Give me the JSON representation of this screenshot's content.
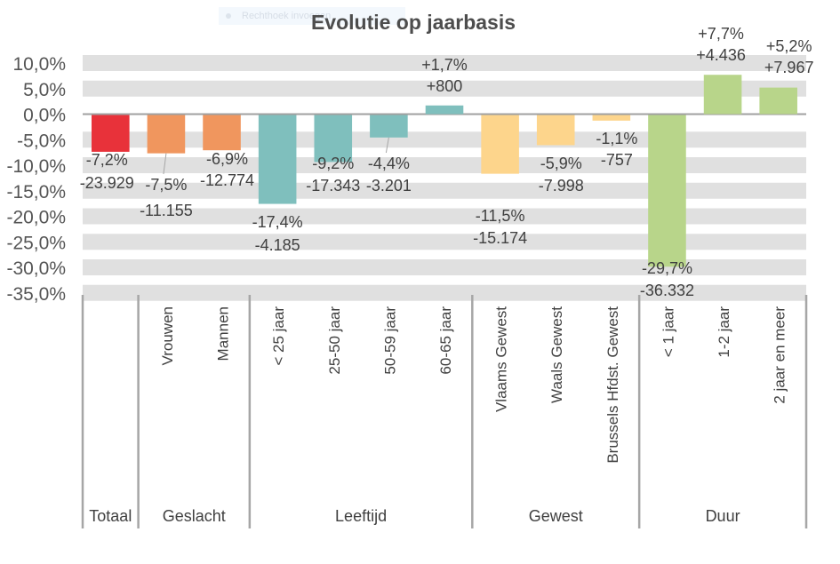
{
  "overlay": {
    "label": "Rechthoek invoegen"
  },
  "chart_data": {
    "type": "bar",
    "title": "Evolutie op jaarbasis",
    "xlabel": "",
    "ylabel": "",
    "ylim": [
      -35,
      10
    ],
    "yticks": [
      10,
      5,
      0,
      -5,
      -10,
      -15,
      -20,
      -25,
      -30,
      -35
    ],
    "ytick_labels": [
      "10,0%",
      "5,0%",
      "0,0%",
      "-5,0%",
      "-10,0%",
      "-15,0%",
      "-20,0%",
      "-25,0%",
      "-30,0%",
      "-35,0%"
    ],
    "grid": true,
    "legend": "none",
    "categories": [
      "Totaal",
      "Vrouwen",
      "Mannen",
      "< 25 jaar",
      "25-50 jaar",
      "50-59 jaar",
      "60-65 jaar",
      "Vlaams Gewest",
      "Waals Gewest",
      "Brussels Hfdst. Gewest",
      "< 1 jaar",
      "1-2 jaar",
      "2 jaar en meer"
    ],
    "values": [
      -7.2,
      -7.5,
      -6.9,
      -17.4,
      -9.2,
      -4.4,
      1.7,
      -11.5,
      -5.9,
      -1.1,
      -29.7,
      7.7,
      5.2
    ],
    "pct_labels": [
      "-7,2%",
      "-7,5%",
      "-6,9%",
      "-17,4%",
      "-9,2%",
      "-4,4%",
      "+1,7%",
      "-11,5%",
      "-5,9%",
      "-1,1%",
      "-29,7%",
      "+7,7%",
      "+5,2%"
    ],
    "abs_labels": [
      "-23.929",
      "-11.155",
      "-12.774",
      "-4.185",
      "-17.343",
      "-3.201",
      "+800",
      "-15.174",
      "-7.998",
      "-757",
      "-36.332",
      "+4.436",
      "+7.967"
    ],
    "groups": [
      {
        "name": "Totaal",
        "count": 1,
        "color": "#e8323a"
      },
      {
        "name": "Geslacht",
        "count": 2,
        "color": "#f0965e"
      },
      {
        "name": "Leeftijd",
        "count": 4,
        "color": "#7fbfbd"
      },
      {
        "name": "Gewest",
        "count": 3,
        "color": "#fdd58c"
      },
      {
        "name": "Duur",
        "count": 3,
        "color": "#b8d58a"
      }
    ]
  }
}
